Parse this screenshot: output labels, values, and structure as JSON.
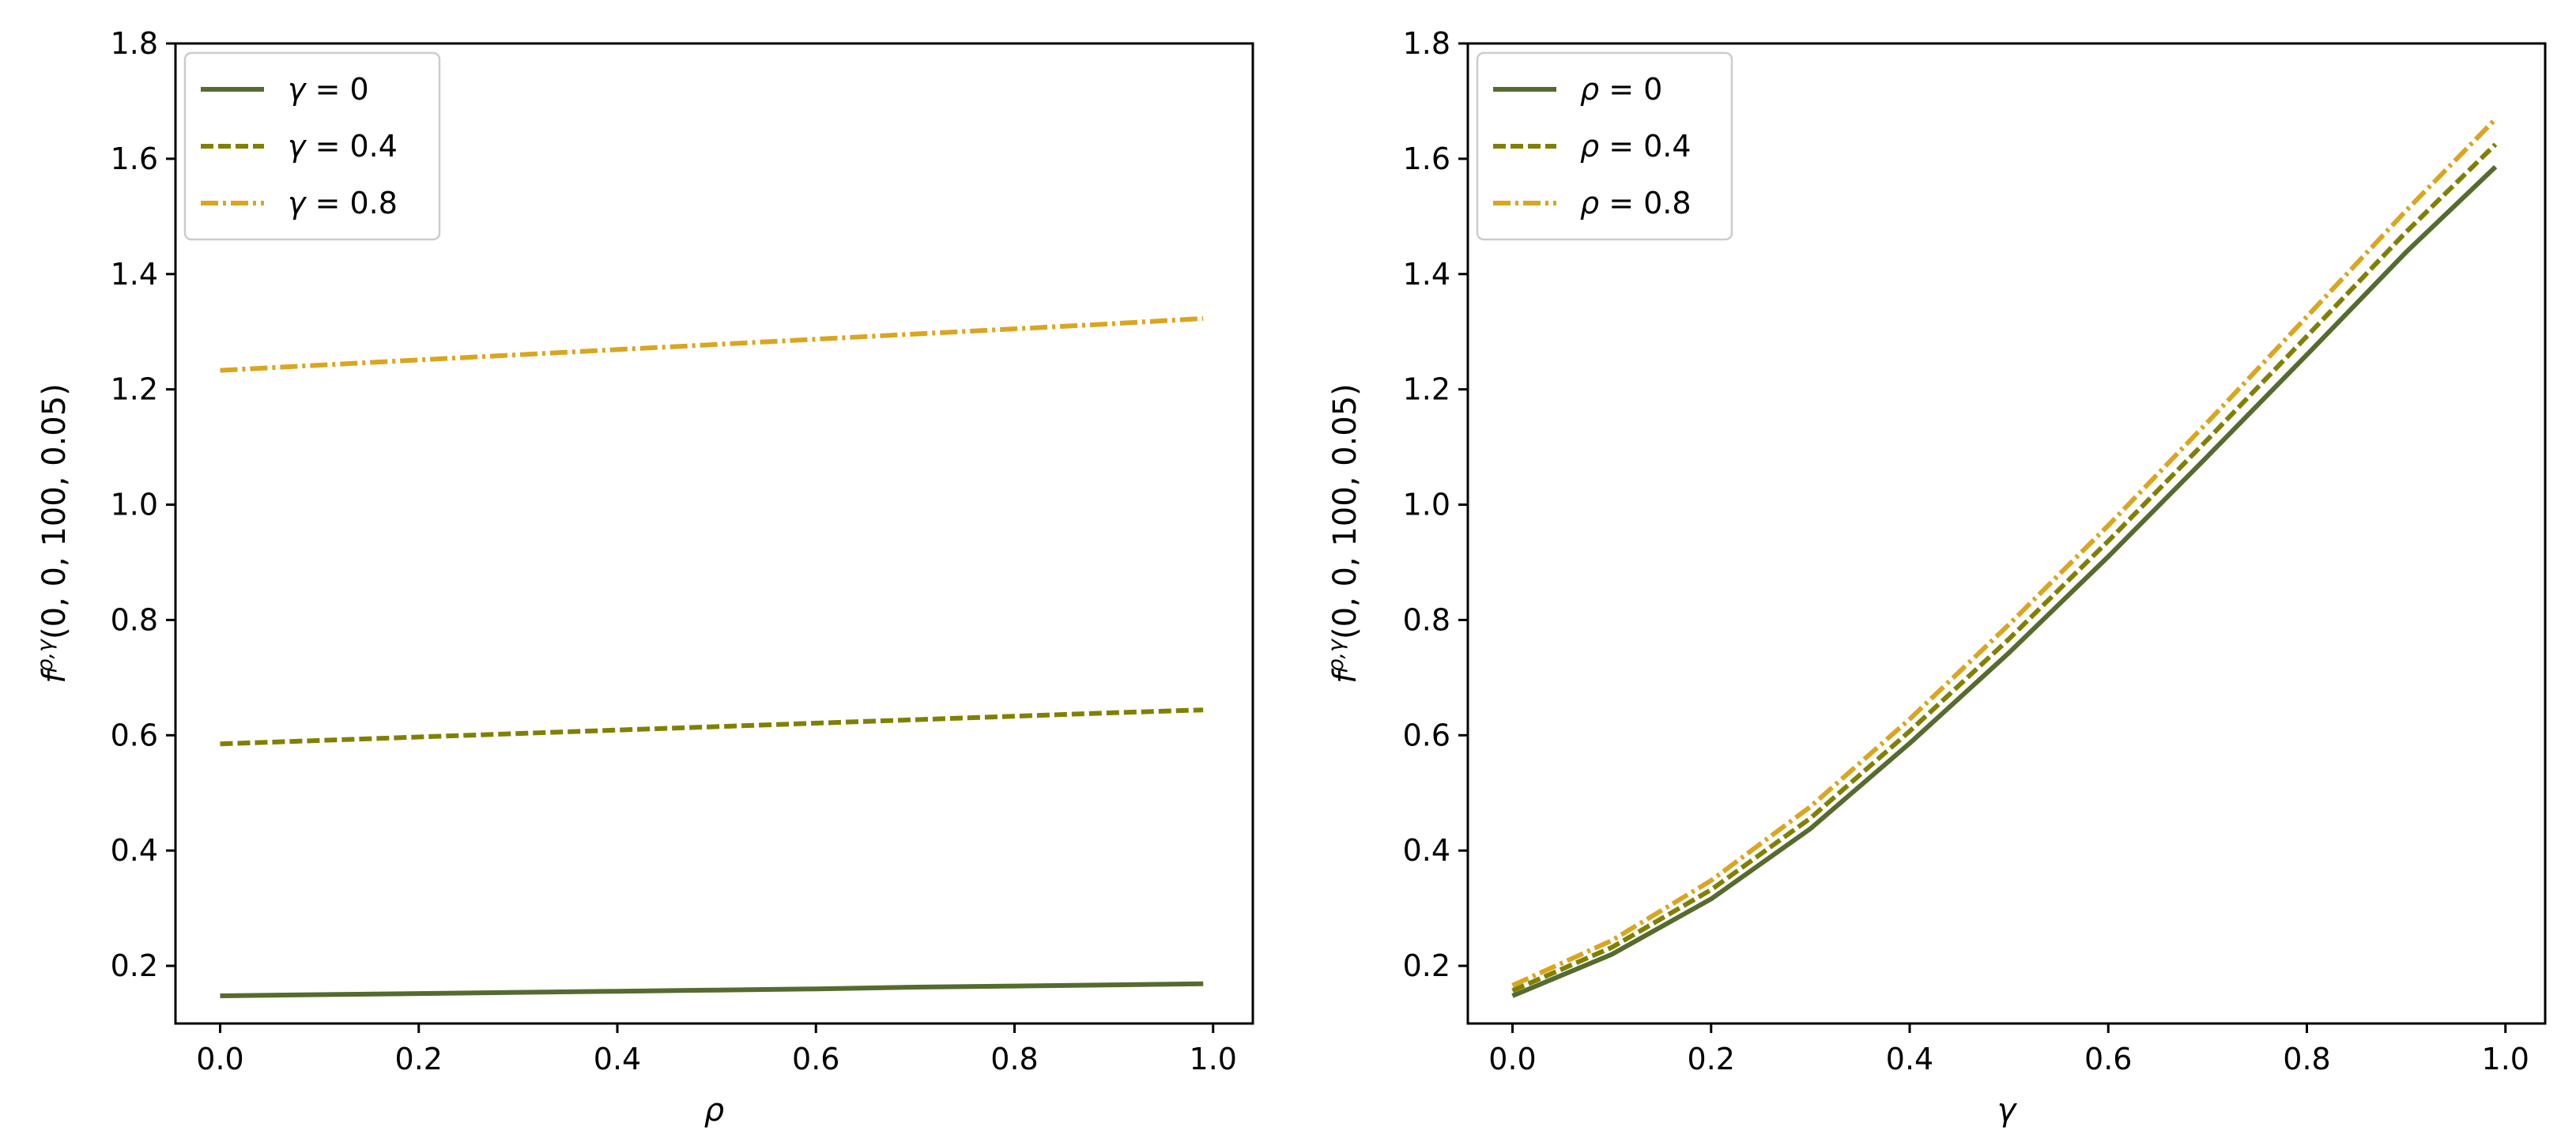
{
  "chart_data": [
    {
      "type": "line",
      "title": "",
      "xlabel": "ρ",
      "ylabel": "f^{ρ,γ}(0, 0, 100, 0.05)",
      "ylabel_base": "f",
      "ylabel_sup": "ρ,γ",
      "ylabel_args": "(0, 0, 100, 0.05)",
      "xlim": [
        -0.045,
        1.04
      ],
      "ylim": [
        0.1,
        1.8
      ],
      "xticks": [
        0.0,
        0.2,
        0.4,
        0.6,
        0.8,
        1.0
      ],
      "xtick_labels": [
        "0.0",
        "0.2",
        "0.4",
        "0.6",
        "0.8",
        "1.0"
      ],
      "yticks": [
        0.2,
        0.4,
        0.6,
        0.8,
        1.0,
        1.2,
        1.4,
        1.6,
        1.8
      ],
      "ytick_labels": [
        "0.2",
        "0.4",
        "0.6",
        "0.8",
        "1.0",
        "1.2",
        "1.4",
        "1.6",
        "1.8"
      ],
      "grid": false,
      "legend_position": "top-left",
      "x": [
        0.0,
        0.1,
        0.2,
        0.3,
        0.4,
        0.5,
        0.6,
        0.7,
        0.8,
        0.9,
        0.99
      ],
      "series": [
        {
          "name": "γ = 0",
          "symbol": "γ",
          "value": "0",
          "color": "#556b2f",
          "dash": "solid",
          "values": [
            0.148,
            0.15,
            0.152,
            0.154,
            0.156,
            0.158,
            0.16,
            0.163,
            0.165,
            0.167,
            0.169
          ]
        },
        {
          "name": "γ = 0.4",
          "symbol": "γ",
          "value": "0.4",
          "color": "#808000",
          "dash": "dashed",
          "values": [
            0.585,
            0.591,
            0.597,
            0.603,
            0.609,
            0.615,
            0.621,
            0.627,
            0.633,
            0.639,
            0.644
          ]
        },
        {
          "name": "γ = 0.8",
          "symbol": "γ",
          "value": "0.8",
          "color": "#daa520",
          "dash": "dashdot",
          "values": [
            1.233,
            1.242,
            1.251,
            1.26,
            1.269,
            1.278,
            1.287,
            1.296,
            1.305,
            1.314,
            1.323
          ]
        }
      ]
    },
    {
      "type": "line",
      "title": "",
      "xlabel": "γ",
      "ylabel": "f^{ρ,γ}(0, 0, 100, 0.05)",
      "ylabel_base": "f",
      "ylabel_sup": "ρ,γ",
      "ylabel_args": "(0, 0, 100, 0.05)",
      "xlim": [
        -0.045,
        1.04
      ],
      "ylim": [
        0.1,
        1.8
      ],
      "xticks": [
        0.0,
        0.2,
        0.4,
        0.6,
        0.8,
        1.0
      ],
      "xtick_labels": [
        "0.0",
        "0.2",
        "0.4",
        "0.6",
        "0.8",
        "1.0"
      ],
      "yticks": [
        0.2,
        0.4,
        0.6,
        0.8,
        1.0,
        1.2,
        1.4,
        1.6,
        1.8
      ],
      "ytick_labels": [
        "0.2",
        "0.4",
        "0.6",
        "0.8",
        "1.0",
        "1.2",
        "1.4",
        "1.6",
        "1.8"
      ],
      "grid": false,
      "legend_position": "top-left",
      "x": [
        0.0,
        0.1,
        0.2,
        0.3,
        0.4,
        0.5,
        0.6,
        0.7,
        0.8,
        0.9,
        0.99
      ],
      "series": [
        {
          "name": "ρ = 0",
          "symbol": "ρ",
          "value": "0",
          "color": "#556b2f",
          "dash": "solid",
          "values": [
            0.148,
            0.22,
            0.316,
            0.438,
            0.586,
            0.743,
            0.91,
            1.084,
            1.26,
            1.438,
            1.586
          ]
        },
        {
          "name": "ρ = 0.4",
          "symbol": "ρ",
          "value": "0.4",
          "color": "#808000",
          "dash": "dashed",
          "values": [
            0.157,
            0.232,
            0.332,
            0.456,
            0.607,
            0.767,
            0.937,
            1.113,
            1.292,
            1.473,
            1.625
          ]
        },
        {
          "name": "ρ = 0.8",
          "symbol": "ρ",
          "value": "0.8",
          "color": "#daa520",
          "dash": "dashdot",
          "values": [
            0.166,
            0.244,
            0.348,
            0.476,
            0.628,
            0.792,
            0.964,
            1.143,
            1.326,
            1.51,
            1.669
          ]
        }
      ]
    }
  ]
}
